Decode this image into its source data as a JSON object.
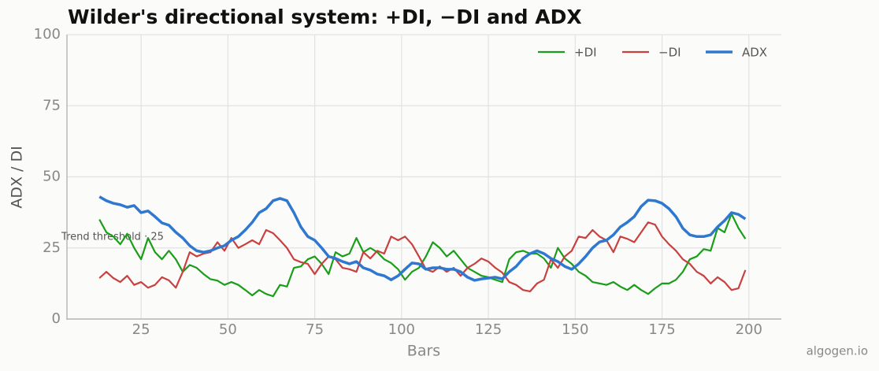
{
  "chart_data": {
    "type": "line",
    "title": "Wilder's directional system: +DI, −DI and ADX",
    "x_label": "Bars",
    "y_label": "ADX / DI",
    "annotation": "Trend threshold · 25",
    "watermark": "algogen.io",
    "x": [
      13,
      15,
      17,
      19,
      21,
      23,
      25,
      27,
      29,
      31,
      33,
      35,
      37,
      39,
      41,
      43,
      45,
      47,
      49,
      51,
      53,
      55,
      57,
      59,
      61,
      63,
      65,
      67,
      69,
      71,
      73,
      75,
      77,
      79,
      81,
      83,
      85,
      87,
      89,
      91,
      93,
      95,
      97,
      99,
      101,
      103,
      105,
      107,
      109,
      111,
      113,
      115,
      117,
      119,
      121,
      123,
      125,
      127,
      129,
      131,
      133,
      135,
      137,
      139,
      141,
      143,
      145,
      147,
      149,
      151,
      153,
      155,
      157,
      159,
      161,
      163,
      165,
      167,
      169,
      171,
      173,
      175,
      177,
      179,
      181,
      183,
      185,
      187,
      189,
      191,
      193,
      195,
      197,
      199
    ],
    "series": [
      {
        "name": "+DI",
        "color": "#1a9e1a",
        "width": 2.2,
        "values": [
          35,
          30.5,
          29,
          26.3,
          30,
          25,
          21,
          28.5,
          23.5,
          21,
          24,
          21,
          16.6,
          19,
          18,
          15.8,
          14,
          13.5,
          12,
          13,
          12,
          10.2,
          8.3,
          10.2,
          8.8,
          8,
          12,
          11.4,
          18,
          18.5,
          21,
          22,
          19.4,
          15.8,
          23.5,
          22,
          23,
          28.5,
          23.5,
          25,
          23.5,
          21,
          19.7,
          17.5,
          13.8,
          16.6,
          18,
          22,
          27,
          25,
          22,
          24,
          21,
          18,
          16.6,
          15.2,
          14.7,
          13.8,
          13,
          21,
          23.5,
          24,
          23,
          23,
          21.3,
          18,
          25,
          21.3,
          19.4,
          16.6,
          15.2,
          13,
          12.5,
          12,
          13,
          11.4,
          10.2,
          12,
          10.2,
          8.8,
          10.8,
          12.5,
          12.5,
          13.8,
          16.6,
          21,
          22,
          24.6,
          24,
          32,
          30.5,
          37,
          32,
          28.2
        ]
      },
      {
        "name": "−DI",
        "color": "#c94040",
        "width": 2.2,
        "values": [
          14.4,
          16.6,
          14.4,
          13,
          15.2,
          12,
          13,
          11,
          12,
          14.7,
          13.6,
          11,
          16.6,
          23.5,
          22,
          23,
          23.5,
          27,
          24,
          28.5,
          25,
          26.3,
          27.7,
          26.3,
          31.3,
          30.2,
          27.7,
          25,
          21,
          20,
          19.4,
          15.8,
          19.4,
          22,
          21,
          18,
          17.5,
          16.6,
          23.5,
          21.3,
          24,
          23,
          29,
          27.7,
          29,
          26.3,
          22,
          17.5,
          16.6,
          18.5,
          16.6,
          18,
          15.2,
          18,
          19.4,
          21.3,
          20.2,
          18,
          16.3,
          13,
          12,
          10.2,
          9.7,
          12.5,
          13.8,
          21,
          18,
          22,
          24,
          29,
          28.5,
          31.3,
          29,
          27.7,
          23.5,
          29,
          28.2,
          27,
          30.5,
          34,
          33.2,
          29,
          26.3,
          24,
          21,
          19.4,
          16.6,
          15.2,
          12.5,
          14.7,
          13,
          10.2,
          10.8,
          17.2
        ]
      },
      {
        "name": "ADX",
        "color": "#2f78d0",
        "width": 3.5,
        "values": [
          43,
          41.6,
          40.7,
          40.2,
          39.3,
          39.9,
          37.4,
          38,
          36,
          33.8,
          33,
          30.5,
          28.5,
          25.8,
          24,
          23.5,
          24,
          25,
          25.8,
          27.7,
          29,
          31.3,
          34,
          37.4,
          38.8,
          41.6,
          42.4,
          41.6,
          37.4,
          32.4,
          29,
          27.7,
          25,
          22,
          21.3,
          20.2,
          19.4,
          20.2,
          18,
          17.2,
          15.8,
          15.2,
          13.8,
          15.2,
          17.5,
          19.7,
          19.4,
          17.5,
          18,
          18,
          17.5,
          17.5,
          16.6,
          14.7,
          13.6,
          14.1,
          14.4,
          14.7,
          14.1,
          16.6,
          18.5,
          21.3,
          23,
          24,
          23,
          21.3,
          20.2,
          18.5,
          17.5,
          19.4,
          22,
          25,
          27.1,
          27.7,
          29.6,
          32.4,
          34,
          36,
          39.6,
          41.8,
          41.6,
          40.7,
          38.8,
          36,
          31.9,
          29.6,
          29,
          29,
          29.6,
          32.4,
          34.6,
          37.4,
          36.8,
          35.2
        ]
      }
    ],
    "xlim": [
      3.65,
      209.35
    ],
    "xticks": [
      25,
      50,
      75,
      100,
      125,
      150,
      175,
      200
    ],
    "ylim": [
      0,
      100
    ],
    "yticks": [
      0,
      25,
      50,
      75,
      100
    ],
    "grid": true,
    "legend": "upper right"
  }
}
